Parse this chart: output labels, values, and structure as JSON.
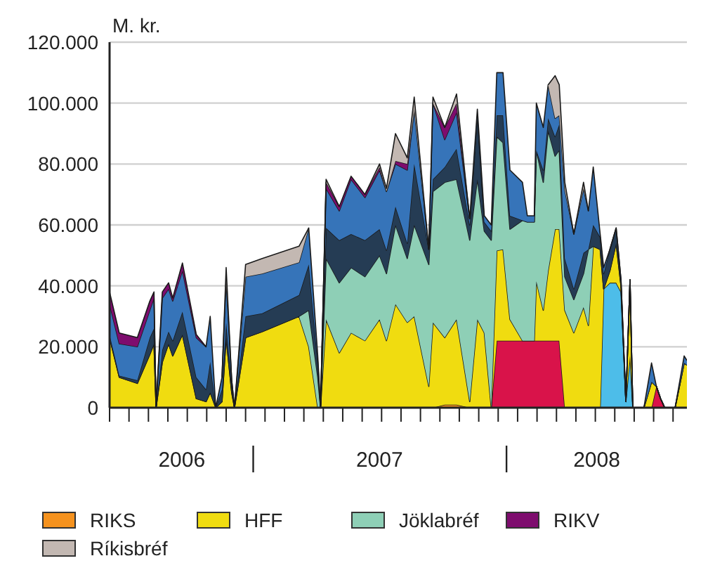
{
  "chart_data": {
    "type": "area",
    "ylabel": "M. kr.",
    "stacked": true,
    "grid": "y",
    "legend": "bottom",
    "xlim": [
      "2006-06-08",
      "2008-09-17"
    ],
    "ylim": [
      0,
      120000
    ],
    "yticks": [
      {
        "value": 0,
        "label": "0"
      },
      {
        "value": 20000,
        "label": "20.000"
      },
      {
        "value": 40000,
        "label": "40.000"
      },
      {
        "value": 60000,
        "label": "60.000"
      },
      {
        "value": 80000,
        "label": "80.000"
      },
      {
        "value": 100000,
        "label": "100.000"
      },
      {
        "value": 120000,
        "label": "120.000"
      }
    ],
    "xticks": [
      {
        "value": "2006-06-08",
        "label": null
      },
      {
        "value": "2006-07-06",
        "label": null
      },
      {
        "value": "2006-08-03",
        "label": null
      },
      {
        "value": "2006-08-31",
        "label": null
      },
      {
        "value": "2006-09-28",
        "label": null
      },
      {
        "value": "2006-10-26",
        "label": null
      },
      {
        "value": "2006-11-23",
        "label": null
      },
      {
        "value": "2006-12-21",
        "label": null
      },
      {
        "value": "2007-01-18",
        "label": null
      },
      {
        "value": "2007-02-15",
        "label": null
      },
      {
        "value": "2007-03-15",
        "label": null
      },
      {
        "value": "2007-04-12",
        "label": null
      },
      {
        "value": "2007-05-10",
        "label": null
      },
      {
        "value": "2007-06-07",
        "label": null
      },
      {
        "value": "2007-07-05",
        "label": null
      },
      {
        "value": "2007-08-02",
        "label": null
      },
      {
        "value": "2007-08-30",
        "label": null
      },
      {
        "value": "2007-09-27",
        "label": null
      },
      {
        "value": "2007-10-25",
        "label": null
      },
      {
        "value": "2007-11-22",
        "label": null
      },
      {
        "value": "2007-12-20",
        "label": null
      },
      {
        "value": "2008-01-17",
        "label": null
      },
      {
        "value": "2008-02-14",
        "label": null
      },
      {
        "value": "2008-03-13",
        "label": null
      },
      {
        "value": "2008-04-10",
        "label": null
      },
      {
        "value": "2008-05-08",
        "label": null
      },
      {
        "value": "2008-06-05",
        "label": null
      },
      {
        "value": "2008-07-03",
        "label": null
      },
      {
        "value": "2008-07-31",
        "label": null
      },
      {
        "value": "2008-08-28",
        "label": null
      },
      {
        "value": "2006-09-20",
        "label": "2006"
      },
      {
        "value": "2007-07-02",
        "label": "2007"
      },
      {
        "value": "2008-05-10",
        "label": "2008"
      }
    ],
    "x": [
      "2006-06-08",
      "2006-06-22",
      "2006-07-18",
      "2006-08-05",
      "2006-08-11",
      "2006-08-14",
      "2006-08-23",
      "2006-09-01",
      "2006-09-07",
      "2006-09-21",
      "2006-10-11",
      "2006-10-25",
      "2006-10-31",
      "2006-11-08",
      "2006-11-17",
      "2006-11-23",
      "2006-12-01",
      "2006-12-05",
      "2006-12-21",
      "2007-01-14",
      "2007-03-08",
      "2007-03-22",
      "2007-04-04",
      "2007-04-08",
      "2007-04-16",
      "2007-05-05",
      "2007-05-22",
      "2007-06-11",
      "2007-07-02",
      "2007-07-12",
      "2007-07-25",
      "2007-08-11",
      "2007-08-21",
      "2007-09-11",
      "2007-09-17",
      "2007-10-04",
      "2007-10-21",
      "2007-11-09",
      "2007-11-20",
      "2007-11-30",
      "2007-12-10",
      "2007-12-18",
      "2007-12-27",
      "2008-01-06",
      "2008-01-24",
      "2008-01-31",
      "2008-02-10",
      "2008-02-13",
      "2008-02-23",
      "2008-03-01",
      "2008-03-11",
      "2008-03-17",
      "2008-03-25",
      "2008-04-07",
      "2008-04-21",
      "2008-04-28",
      "2008-05-05",
      "2008-05-15",
      "2008-05-20",
      "2008-05-29",
      "2008-06-07",
      "2008-06-14",
      "2008-06-21",
      "2008-06-27",
      "2008-07-01",
      "2008-07-17",
      "2008-07-28",
      "2008-08-04",
      "2008-08-10",
      "2008-08-16",
      "2008-08-31",
      "2008-09-13",
      "2008-09-17"
    ],
    "series": [
      {
        "name": "RIKS",
        "color": "#f5921e",
        "values": [
          null,
          null,
          null,
          null,
          null,
          null,
          null,
          null,
          null,
          null,
          null,
          null,
          null,
          null,
          null,
          null,
          null,
          null,
          null,
          null,
          null,
          null,
          null,
          null,
          null,
          null,
          null,
          null,
          null,
          null,
          null,
          null,
          null,
          null,
          0,
          1000,
          1000,
          0,
          null,
          null,
          null,
          null,
          null,
          null,
          null,
          null,
          null,
          null,
          null,
          null,
          null,
          null,
          null,
          null,
          null,
          null,
          null,
          null,
          null,
          null,
          null,
          null,
          null,
          null,
          null,
          null,
          null,
          null,
          null,
          null,
          null,
          null,
          null
        ]
      },
      {
        "color": "#4dbde9",
        "values": [
          null,
          null,
          null,
          null,
          null,
          null,
          null,
          null,
          null,
          null,
          null,
          null,
          null,
          null,
          null,
          null,
          null,
          null,
          null,
          null,
          null,
          null,
          null,
          null,
          null,
          null,
          null,
          null,
          null,
          null,
          null,
          null,
          null,
          null,
          null,
          null,
          null,
          null,
          null,
          null,
          null,
          null,
          null,
          null,
          null,
          null,
          null,
          null,
          null,
          null,
          null,
          null,
          null,
          null,
          null,
          null,
          null,
          0,
          39000,
          41000,
          41000,
          38000,
          2000,
          17000,
          0,
          null,
          null,
          null,
          null,
          null,
          null,
          null,
          null
        ]
      },
      {
        "color": "#d9134a",
        "values": [
          null,
          null,
          null,
          null,
          null,
          null,
          null,
          null,
          null,
          null,
          null,
          null,
          null,
          null,
          null,
          null,
          null,
          null,
          null,
          null,
          null,
          null,
          null,
          null,
          null,
          null,
          null,
          null,
          null,
          null,
          null,
          null,
          null,
          null,
          null,
          null,
          null,
          null,
          null,
          null,
          0,
          22000,
          22000,
          22000,
          22000,
          22000,
          22000,
          22000,
          22000,
          22000,
          22000,
          22000,
          0,
          null,
          null,
          null,
          null,
          null,
          null,
          null,
          null,
          null,
          null,
          null,
          null,
          null,
          0,
          7000,
          3000,
          0,
          null,
          null,
          null
        ]
      },
      {
        "name": "HFF",
        "color": "#f0dc10",
        "values": [
          23000,
          10000,
          8000,
          17500,
          21000,
          0,
          15000,
          21000,
          17000,
          24000,
          3000,
          2000,
          5000,
          0,
          2000,
          23000,
          5000,
          0,
          23000,
          25000,
          30000,
          20000,
          0,
          0,
          29000,
          18000,
          24600,
          22000,
          29000,
          22000,
          34000,
          28000,
          30000,
          7000,
          28000,
          22000,
          28000,
          2000,
          29000,
          24600,
          0,
          29600,
          30000,
          7000,
          0,
          0,
          0,
          19500,
          10000,
          23000,
          36600,
          36600,
          32000,
          24600,
          33000,
          27000,
          53000,
          52000,
          0,
          4000,
          13000,
          2000,
          0,
          25000,
          0,
          0,
          8500,
          0,
          0,
          0,
          0,
          14700,
          14000
        ]
      },
      {
        "name": "Jöklabréf",
        "color": "#8ecfb6",
        "values": [
          0,
          0,
          0,
          0,
          0,
          0,
          0,
          0,
          0,
          0,
          0,
          0,
          0,
          0,
          0,
          0,
          0,
          0,
          0,
          0,
          0,
          12000,
          10000,
          0,
          20000,
          23000,
          21400,
          21000,
          21000,
          22000,
          26000,
          21000,
          30000,
          40000,
          43000,
          51000,
          46000,
          53000,
          46000,
          33400,
          55000,
          37400,
          35000,
          29600,
          39500,
          39000,
          39000,
          43000,
          42000,
          46000,
          24000,
          26000,
          11000,
          10900,
          11000,
          25000,
          0,
          0,
          0,
          0,
          0,
          0,
          0,
          0,
          0,
          0,
          0,
          0,
          0,
          0,
          0,
          0,
          0
        ]
      },
      {
        "color": "#253c54",
        "values": [
          1000,
          500,
          1000,
          5500,
          5000,
          0,
          4000,
          4000,
          5000,
          7500,
          7000,
          4000,
          10000,
          0,
          4000,
          5000,
          2000,
          0,
          7000,
          6000,
          7000,
          15000,
          5000,
          0,
          10000,
          14000,
          11000,
          12000,
          8600,
          7700,
          6000,
          5000,
          20000,
          5000,
          4000,
          5000,
          10000,
          5000,
          20500,
          3000,
          3000,
          7000,
          9000,
          4400,
          0,
          0,
          0,
          0,
          4000,
          4000,
          6400,
          8400,
          6000,
          3500,
          6800,
          0,
          7000,
          4000,
          5000,
          7000,
          5000,
          2000,
          0,
          0,
          0,
          0,
          0,
          0,
          0,
          0,
          0,
          0,
          0
        ]
      },
      {
        "color": "#3674b9",
        "values": [
          10000,
          10500,
          11000,
          9000,
          10000,
          0,
          17000,
          14000,
          13000,
          13500,
          13000,
          14000,
          15000,
          0,
          4000,
          14000,
          2000,
          0,
          13000,
          13000,
          10700,
          12000,
          2000,
          0,
          13000,
          9600,
          18000,
          14000,
          19400,
          19300,
          14000,
          24000,
          18000,
          0,
          25000,
          9000,
          12000,
          2000,
          2500,
          2000,
          2000,
          14000,
          14000,
          15000,
          12500,
          2000,
          2000,
          15500,
          14000,
          11000,
          6000,
          3000,
          22500,
          18000,
          21200,
          12600,
          19000,
          1000,
          2000,
          0,
          0,
          0,
          0,
          0,
          0,
          0,
          6200,
          0,
          0,
          0,
          0,
          2300,
          1500
        ]
      },
      {
        "name": "RIKV",
        "color": "#7e0c6e",
        "values": [
          4000,
          3500,
          3000,
          3000,
          2000,
          0,
          2000,
          2000,
          1000,
          2500,
          1000,
          0,
          null,
          null,
          null,
          null,
          null,
          null,
          null,
          null,
          null,
          null,
          null,
          0,
          2000,
          1400,
          1000,
          1000,
          1000,
          0,
          1000,
          2000,
          0,
          null,
          0,
          4000,
          3000,
          0,
          null,
          null,
          null,
          null,
          null,
          null,
          null,
          null,
          null,
          null,
          null,
          null,
          null,
          null,
          null,
          null,
          null,
          null,
          null,
          null,
          null,
          null,
          null,
          null,
          null,
          null,
          null,
          null,
          null,
          null,
          null,
          null,
          null,
          null,
          null
        ]
      },
      {
        "name": "Ríkisbréf",
        "color": "#c3b8b2",
        "values": [
          null,
          null,
          null,
          null,
          null,
          null,
          null,
          null,
          null,
          null,
          null,
          null,
          null,
          null,
          0,
          4000,
          0,
          0,
          4000,
          5000,
          5300,
          0,
          null,
          0,
          1000,
          0,
          null,
          0,
          1000,
          1000,
          9000,
          2000,
          4000,
          0,
          2000,
          0,
          3000,
          0,
          null,
          null,
          null,
          null,
          null,
          null,
          null,
          null,
          null,
          null,
          null,
          0,
          14000,
          10000,
          2500,
          0,
          2000,
          0,
          null,
          null,
          null,
          null,
          null,
          null,
          null,
          null,
          null,
          null,
          null,
          null,
          null,
          null,
          null,
          null,
          null
        ]
      }
    ]
  }
}
